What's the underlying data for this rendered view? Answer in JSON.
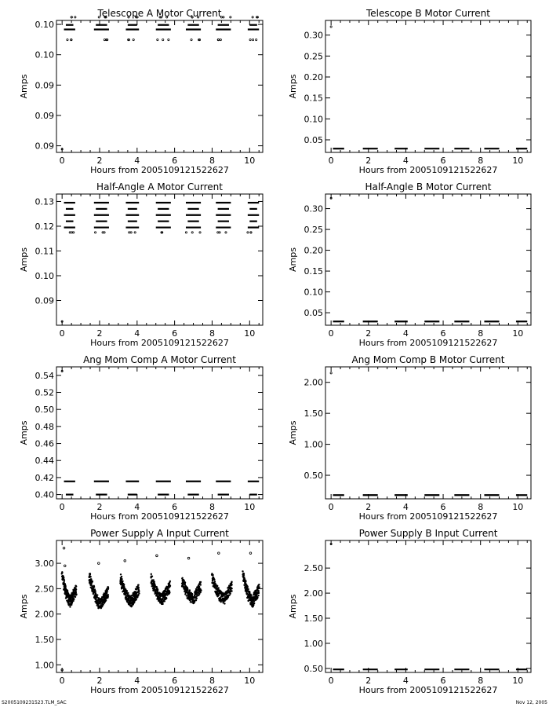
{
  "footer": {
    "left": "S2005109231523.TLM_SAC",
    "right": "Nov 12, 2005"
  },
  "chart_data": [
    {
      "type": "scatter",
      "title": "Telescope A Motor Current",
      "xlabel": "Hours from 2005109121522627",
      "ylabel": "Amps",
      "xlim": [
        -0.3,
        10.7
      ],
      "ylim": [
        0.082,
        0.1025
      ],
      "xticks": [
        "0",
        "2",
        "4",
        "6",
        "8",
        "10"
      ],
      "yticks": [
        "0.10",
        "0.10",
        "0.09",
        "0.09",
        "0.09"
      ],
      "grid": false,
      "levels": [
        0.1011,
        0.1018
      ],
      "sparse_levels": [
        0.0995,
        0.103,
        0.0825
      ],
      "clusters": [
        [
          0.1,
          0.7
        ],
        [
          1.7,
          2.5
        ],
        [
          3.4,
          4.1
        ],
        [
          5.0,
          5.8
        ],
        [
          6.6,
          7.4
        ],
        [
          8.2,
          9.0
        ],
        [
          9.9,
          10.5
        ]
      ]
    },
    {
      "type": "scatter",
      "title": "Telescope B Motor Current",
      "xlabel": "Hours from 2005109121522627",
      "ylabel": "Amps",
      "xlim": [
        -0.3,
        10.7
      ],
      "ylim": [
        0.02,
        0.335
      ],
      "xticks": [
        "0",
        "2",
        "4",
        "6",
        "8",
        "10"
      ],
      "yticks": [
        "0.05",
        "0.10",
        "0.15",
        "0.20",
        "0.25",
        "0.30"
      ],
      "grid": false,
      "levels": [
        0.029
      ],
      "sparse_levels": [
        0.32
      ],
      "clusters": [
        [
          0.1,
          0.7
        ],
        [
          1.7,
          2.5
        ],
        [
          3.4,
          4.1
        ],
        [
          5.0,
          5.8
        ],
        [
          6.6,
          7.4
        ],
        [
          8.2,
          9.0
        ],
        [
          9.9,
          10.5
        ]
      ]
    },
    {
      "type": "scatter",
      "title": "Half-Angle A Motor Current",
      "xlabel": "Hours from 2005109121522627",
      "ylabel": "Amps",
      "xlim": [
        -0.3,
        10.7
      ],
      "ylim": [
        0.08,
        0.133
      ],
      "xticks": [
        "0",
        "2",
        "4",
        "6",
        "8",
        "10"
      ],
      "yticks": [
        "0.09",
        "0.10",
        "0.11",
        "0.12",
        "0.13"
      ],
      "grid": false,
      "levels": [
        0.1195,
        0.122,
        0.1245,
        0.127,
        0.1295
      ],
      "sparse_levels": [
        0.1175,
        0.0815
      ],
      "clusters": [
        [
          0.1,
          0.7
        ],
        [
          1.7,
          2.5
        ],
        [
          3.4,
          4.1
        ],
        [
          5.0,
          5.8
        ],
        [
          6.6,
          7.4
        ],
        [
          8.2,
          9.0
        ],
        [
          9.9,
          10.5
        ]
      ]
    },
    {
      "type": "scatter",
      "title": "Half-Angle B Motor Current",
      "xlabel": "Hours from 2005109121522627",
      "ylabel": "Amps",
      "xlim": [
        -0.3,
        10.7
      ],
      "ylim": [
        0.02,
        0.335
      ],
      "xticks": [
        "0",
        "2",
        "4",
        "6",
        "8",
        "10"
      ],
      "yticks": [
        "0.05",
        "0.10",
        "0.15",
        "0.20",
        "0.25",
        "0.30"
      ],
      "grid": false,
      "levels": [
        0.029
      ],
      "sparse_levels": [
        0.325
      ],
      "clusters": [
        [
          0.1,
          0.7
        ],
        [
          1.7,
          2.5
        ],
        [
          3.4,
          4.1
        ],
        [
          5.0,
          5.8
        ],
        [
          6.6,
          7.4
        ],
        [
          8.2,
          9.0
        ],
        [
          9.9,
          10.5
        ]
      ]
    },
    {
      "type": "scatter",
      "title": "Ang Mom Comp A Motor Current",
      "xlabel": "Hours from 2005109121522627",
      "ylabel": "Amps",
      "xlim": [
        -0.3,
        10.7
      ],
      "ylim": [
        0.395,
        0.55
      ],
      "xticks": [
        "0",
        "2",
        "4",
        "6",
        "8",
        "10"
      ],
      "yticks": [
        "0.40",
        "0.42",
        "0.44",
        "0.46",
        "0.48",
        "0.50",
        "0.52",
        "0.54"
      ],
      "grid": false,
      "levels": [
        0.4155,
        0.4
      ],
      "sparse_levels": [
        0.545
      ],
      "clusters": [
        [
          0.1,
          0.7
        ],
        [
          1.7,
          2.5
        ],
        [
          3.4,
          4.1
        ],
        [
          5.0,
          5.8
        ],
        [
          6.6,
          7.4
        ],
        [
          8.2,
          9.0
        ],
        [
          9.9,
          10.5
        ]
      ]
    },
    {
      "type": "scatter",
      "title": "Ang Mom Comp B Motor Current",
      "xlabel": "Hours from 2005109121522627",
      "ylabel": "Amps",
      "xlim": [
        -0.3,
        10.7
      ],
      "ylim": [
        0.12,
        2.25
      ],
      "xticks": [
        "0",
        "2",
        "4",
        "6",
        "8",
        "10"
      ],
      "yticks": [
        "0.50",
        "1.00",
        "1.50",
        "2.00"
      ],
      "grid": false,
      "levels": [
        0.18
      ],
      "sparse_levels": [
        2.15
      ],
      "clusters": [
        [
          0.1,
          0.7
        ],
        [
          1.7,
          2.5
        ],
        [
          3.4,
          4.1
        ],
        [
          5.0,
          5.8
        ],
        [
          6.6,
          7.4
        ],
        [
          8.2,
          9.0
        ],
        [
          9.9,
          10.5
        ]
      ]
    },
    {
      "type": "scatter",
      "title": "Power Supply A Input Current",
      "xlabel": "Hours from 2005109121522627",
      "ylabel": "Amps",
      "xlim": [
        -0.3,
        10.7
      ],
      "ylim": [
        0.85,
        3.45
      ],
      "xticks": [
        "0",
        "2",
        "4",
        "6",
        "8",
        "10"
      ],
      "yticks": [
        "1.00",
        "1.50",
        "2.00",
        "2.50",
        "3.00"
      ],
      "grid": false,
      "scallops": [
        {
          "start": 0.0,
          "end": 0.75,
          "peak": 2.75,
          "min": 2.25
        },
        {
          "start": 1.45,
          "end": 2.45,
          "peak": 2.75,
          "min": 2.2
        },
        {
          "start": 3.1,
          "end": 4.1,
          "peak": 2.7,
          "min": 2.25
        },
        {
          "start": 4.75,
          "end": 5.75,
          "peak": 2.7,
          "min": 2.3
        },
        {
          "start": 6.4,
          "end": 7.4,
          "peak": 2.65,
          "min": 2.3
        },
        {
          "start": 8.0,
          "end": 9.05,
          "peak": 2.7,
          "min": 2.3
        },
        {
          "start": 9.65,
          "end": 10.5,
          "peak": 2.75,
          "min": 2.25
        }
      ],
      "outliers": [
        [
          0.1,
          3.3
        ],
        [
          0.15,
          2.95
        ],
        [
          1.95,
          3.0
        ],
        [
          3.35,
          3.05
        ],
        [
          5.05,
          3.15
        ],
        [
          6.75,
          3.1
        ],
        [
          8.35,
          3.2
        ],
        [
          10.05,
          3.2
        ],
        [
          0.0,
          0.9
        ]
      ]
    },
    {
      "type": "scatter",
      "title": "Power Supply B Input Current",
      "xlabel": "Hours from 2005109121522627",
      "ylabel": "Amps",
      "xlim": [
        -0.3,
        10.7
      ],
      "ylim": [
        0.42,
        3.05
      ],
      "xticks": [
        "0",
        "2",
        "4",
        "6",
        "8",
        "10"
      ],
      "yticks": [
        "0.50",
        "1.00",
        "1.50",
        "2.00",
        "2.50"
      ],
      "grid": false,
      "levels": [
        0.48
      ],
      "sparse_levels": [
        2.98
      ],
      "clusters": [
        [
          0.1,
          0.7
        ],
        [
          1.7,
          2.5
        ],
        [
          3.4,
          4.1
        ],
        [
          5.0,
          5.8
        ],
        [
          6.6,
          7.4
        ],
        [
          8.2,
          9.0
        ],
        [
          9.9,
          10.5
        ]
      ]
    }
  ]
}
